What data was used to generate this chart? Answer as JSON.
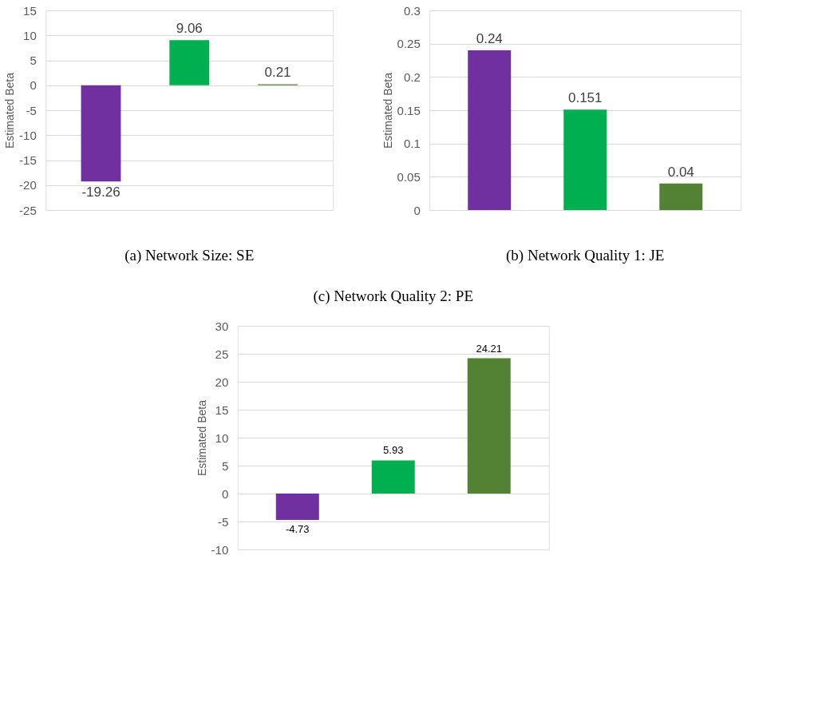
{
  "chart_data": [
    {
      "type": "bar",
      "title": "(a) Network Size: SE",
      "ylabel": "Estimated Beta",
      "categories": [
        null,
        null,
        null
      ],
      "values": [
        -19.26,
        9.06,
        0.21
      ],
      "colors": [
        "#7030a0",
        "#00b050",
        "#548235"
      ],
      "ylim": [
        -25,
        15
      ],
      "yticks": [
        -25,
        -20,
        -15,
        -10,
        -5,
        0,
        5,
        10,
        15
      ],
      "grid": "y",
      "data_labels": true,
      "tick_labels": "y"
    },
    {
      "type": "bar",
      "title": "(b) Network Quality 1: JE",
      "ylabel": "Estimated Beta",
      "categories": [
        null,
        null,
        null
      ],
      "values": [
        0.24,
        0.151,
        0.04
      ],
      "colors": [
        "#7030a0",
        "#00b050",
        "#548235"
      ],
      "ylim": [
        0,
        0.3
      ],
      "yticks": [
        0,
        0.05,
        0.1,
        0.15,
        0.2,
        0.25,
        0.3
      ],
      "grid": "y",
      "data_labels": true,
      "tick_labels": "y"
    },
    {
      "type": "bar",
      "title": "(c) Network Quality 2: PE",
      "ylabel": "Estimated Beta",
      "categories": [
        null,
        null,
        null
      ],
      "values": [
        -4.73,
        5.93,
        24.21
      ],
      "colors": [
        "#7030a0",
        "#00b050",
        "#548235"
      ],
      "ylim": [
        -10,
        30
      ],
      "yticks": [
        -10,
        -5,
        0,
        5,
        10,
        15,
        20,
        25,
        30
      ],
      "grid": "y",
      "data_labels": true,
      "tick_labels": "y"
    }
  ]
}
